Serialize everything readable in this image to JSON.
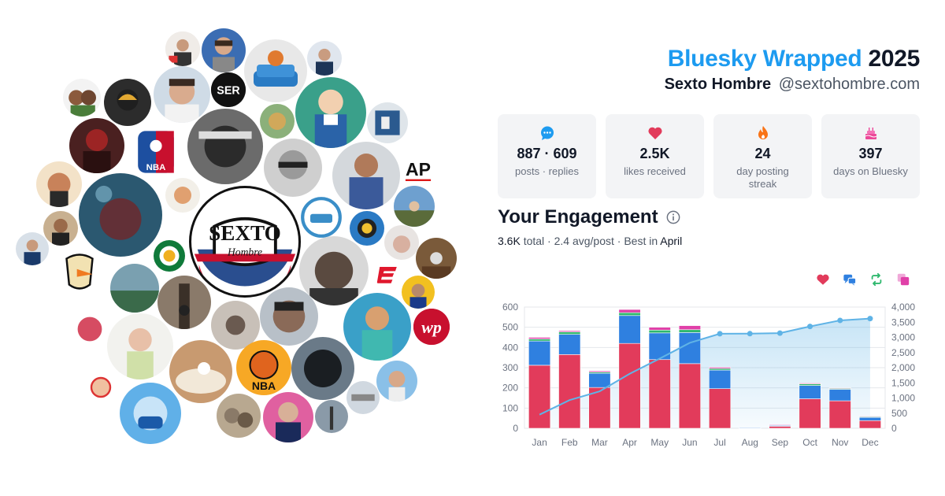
{
  "header": {
    "title_accent": "Bluesky Wrapped",
    "year": "2025",
    "display_name": "Sexto Hombre",
    "handle": "@sextohombre.com"
  },
  "stats": [
    {
      "icon": "speech-bubble-icon",
      "value": "887 · 609",
      "label": "posts · replies"
    },
    {
      "icon": "heart-icon",
      "value": "2.5K",
      "label": "likes received"
    },
    {
      "icon": "flame-icon",
      "value": "24",
      "label": "day posting streak"
    },
    {
      "icon": "cake-icon",
      "value": "397",
      "label": "days on Bluesky"
    }
  ],
  "engagement": {
    "title": "Your Engagement",
    "total": "3.6K",
    "total_suffix": " total · ",
    "avg": "2.4 avg/post",
    "best_prefix": " · Best in ",
    "best_month": "April"
  },
  "avatar_cloud": {
    "center_text_top": "SEXTO",
    "center_text_bottom": "Hombre",
    "brand_labels": [
      "SER",
      "AP",
      "NBA",
      "NBA",
      "wp"
    ]
  },
  "colors": {
    "likes": "#e23b5b",
    "replies": "#2f80e0",
    "reposts": "#2fb86e",
    "quotes": "#e040a8",
    "cumulative": "#5fb3e6",
    "accent": "#1d9bf0"
  },
  "chart_data": {
    "type": "bar",
    "stacked": true,
    "categories": [
      "Jan",
      "Feb",
      "Mar",
      "Apr",
      "May",
      "Jun",
      "Jul",
      "Aug",
      "Sep",
      "Oct",
      "Nov",
      "Dec"
    ],
    "series": [
      {
        "key": "likes",
        "values": [
          312,
          365,
          202,
          420,
          340,
          320,
          196,
          2,
          10,
          146,
          136,
          38
        ]
      },
      {
        "key": "replies",
        "values": [
          120,
          100,
          70,
          138,
          132,
          154,
          92,
          1,
          5,
          66,
          57,
          16
        ]
      },
      {
        "key": "reposts",
        "values": [
          10,
          12,
          6,
          14,
          14,
          14,
          8,
          0,
          2,
          8,
          5,
          4
        ]
      },
      {
        "key": "quotes",
        "values": [
          8,
          6,
          6,
          16,
          14,
          20,
          6,
          0,
          1,
          4,
          2,
          2
        ]
      }
    ],
    "cumulative": {
      "values": [
        450,
        930,
        1220,
        1800,
        2300,
        2820,
        3120,
        3122,
        3140,
        3360,
        3560,
        3620
      ]
    },
    "ylim": [
      0,
      600
    ],
    "yticks": [
      "0",
      "100",
      "200",
      "300",
      "400",
      "500",
      "600"
    ],
    "y2lim": [
      0,
      4000
    ],
    "y2ticks": [
      "0",
      "500",
      "1,000",
      "1,500",
      "2,000",
      "2,500",
      "3,000",
      "3,500",
      "4,000"
    ],
    "grid": true
  }
}
